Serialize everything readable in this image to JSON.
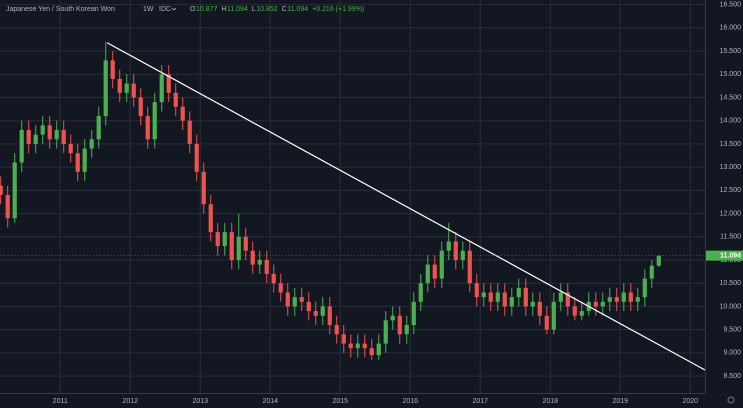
{
  "chart_data": {
    "type": "candlestick",
    "symbol": "Japanese Yen / South Korean Won",
    "interval": "1W",
    "source": "IDC",
    "ohlc_legend": [
      {
        "label": "O",
        "value": 10.877
      },
      {
        "label": "H",
        "value": 11.094
      },
      {
        "label": "L",
        "value": 10.852
      },
      {
        "label": "C",
        "value": 11.094
      }
    ],
    "change": "+0.216 (+1.99%)",
    "last_price": 11.094,
    "up_color": "#4caf50",
    "down_color": "#ef5350",
    "x": [
      2010.15,
      2010.25,
      2010.35,
      2010.45,
      2010.55,
      2010.65,
      2010.75,
      2010.85,
      2010.95,
      2011.05,
      2011.15,
      2011.25,
      2011.35,
      2011.45,
      2011.55,
      2011.65,
      2011.75,
      2011.85,
      2011.95,
      2012.05,
      2012.15,
      2012.25,
      2012.35,
      2012.45,
      2012.55,
      2012.65,
      2012.75,
      2012.85,
      2012.95,
      2013.05,
      2013.15,
      2013.25,
      2013.35,
      2013.45,
      2013.55,
      2013.65,
      2013.75,
      2013.85,
      2013.95,
      2014.05,
      2014.15,
      2014.25,
      2014.35,
      2014.45,
      2014.55,
      2014.65,
      2014.75,
      2014.85,
      2014.95,
      2015.05,
      2015.15,
      2015.25,
      2015.35,
      2015.45,
      2015.55,
      2015.65,
      2015.75,
      2015.85,
      2015.95,
      2016.05,
      2016.15,
      2016.25,
      2016.35,
      2016.45,
      2016.55,
      2016.65,
      2016.75,
      2016.85,
      2016.95,
      2017.05,
      2017.15,
      2017.25,
      2017.35,
      2017.45,
      2017.55,
      2017.65,
      2017.75,
      2017.85,
      2017.95,
      2018.05,
      2018.15,
      2018.25,
      2018.35,
      2018.45,
      2018.55,
      2018.65,
      2018.75,
      2018.85,
      2018.95,
      2019.05,
      2019.15,
      2019.25,
      2019.35,
      2019.45,
      2019.55
    ],
    "candles": [
      [
        12.6,
        12.8,
        12.2,
        12.4
      ],
      [
        12.4,
        12.6,
        11.7,
        11.9
      ],
      [
        11.9,
        13.3,
        11.8,
        13.1
      ],
      [
        13.1,
        14.0,
        12.9,
        13.8
      ],
      [
        13.8,
        14.0,
        13.3,
        13.5
      ],
      [
        13.5,
        13.9,
        13.3,
        13.7
      ],
      [
        13.7,
        14.1,
        13.5,
        13.9
      ],
      [
        13.9,
        14.1,
        13.4,
        13.6
      ],
      [
        13.6,
        14.0,
        13.4,
        13.8
      ],
      [
        13.8,
        14.0,
        13.3,
        13.5
      ],
      [
        13.5,
        13.7,
        13.1,
        13.3
      ],
      [
        13.3,
        13.5,
        12.7,
        12.9
      ],
      [
        12.9,
        13.6,
        12.7,
        13.4
      ],
      [
        13.4,
        13.8,
        13.2,
        13.6
      ],
      [
        13.6,
        14.3,
        13.4,
        14.1
      ],
      [
        14.1,
        15.7,
        13.9,
        15.3
      ],
      [
        15.3,
        15.5,
        14.7,
        14.9
      ],
      [
        14.9,
        15.1,
        14.4,
        14.6
      ],
      [
        14.6,
        15.0,
        14.4,
        14.8
      ],
      [
        14.8,
        15.0,
        14.3,
        14.5
      ],
      [
        14.5,
        14.7,
        13.9,
        14.1
      ],
      [
        14.1,
        14.3,
        13.4,
        13.6
      ],
      [
        13.6,
        14.6,
        13.4,
        14.4
      ],
      [
        14.4,
        15.2,
        14.2,
        15.0
      ],
      [
        15.0,
        15.2,
        14.4,
        14.6
      ],
      [
        14.6,
        14.8,
        14.1,
        14.3
      ],
      [
        14.3,
        14.5,
        13.8,
        14.0
      ],
      [
        14.0,
        14.2,
        13.3,
        13.5
      ],
      [
        13.5,
        13.7,
        12.7,
        12.9
      ],
      [
        12.9,
        13.1,
        12.0,
        12.2
      ],
      [
        12.2,
        12.4,
        11.4,
        11.6
      ],
      [
        11.6,
        11.8,
        11.1,
        11.3
      ],
      [
        11.3,
        11.8,
        11.1,
        11.6
      ],
      [
        11.6,
        11.8,
        10.8,
        11.0
      ],
      [
        11.0,
        12.0,
        10.8,
        11.5
      ],
      [
        11.5,
        11.7,
        11.0,
        11.2
      ],
      [
        11.2,
        11.4,
        10.7,
        10.9
      ],
      [
        10.9,
        11.2,
        10.7,
        11.0
      ],
      [
        11.0,
        11.2,
        10.5,
        10.7
      ],
      [
        10.7,
        10.9,
        10.3,
        10.5
      ],
      [
        10.5,
        10.7,
        10.1,
        10.3
      ],
      [
        10.3,
        10.5,
        9.8,
        10.0
      ],
      [
        10.0,
        10.4,
        9.8,
        10.2
      ],
      [
        10.2,
        10.4,
        9.9,
        10.1
      ],
      [
        10.1,
        10.3,
        9.7,
        9.9
      ],
      [
        9.9,
        10.1,
        9.6,
        9.8
      ],
      [
        9.8,
        10.2,
        9.6,
        10.0
      ],
      [
        10.0,
        10.2,
        9.4,
        9.6
      ],
      [
        9.6,
        9.8,
        9.2,
        9.4
      ],
      [
        9.4,
        9.6,
        9.0,
        9.2
      ],
      [
        9.2,
        9.4,
        8.9,
        9.1
      ],
      [
        9.1,
        9.4,
        8.9,
        9.2
      ],
      [
        9.2,
        9.4,
        8.9,
        9.1
      ],
      [
        9.1,
        9.3,
        8.85,
        8.95
      ],
      [
        8.95,
        9.4,
        8.85,
        9.2
      ],
      [
        9.2,
        9.9,
        9.0,
        9.7
      ],
      [
        9.7,
        10.0,
        9.5,
        9.8
      ],
      [
        9.8,
        10.0,
        9.2,
        9.4
      ],
      [
        9.4,
        9.8,
        9.2,
        9.6
      ],
      [
        9.6,
        10.3,
        9.4,
        10.1
      ],
      [
        10.1,
        10.7,
        9.9,
        10.5
      ],
      [
        10.5,
        11.1,
        10.3,
        10.9
      ],
      [
        10.9,
        11.1,
        10.4,
        10.6
      ],
      [
        10.6,
        11.4,
        10.4,
        11.2
      ],
      [
        11.2,
        11.8,
        11.0,
        11.4
      ],
      [
        11.4,
        11.6,
        10.8,
        11.0
      ],
      [
        11.0,
        11.4,
        10.8,
        11.2
      ],
      [
        11.2,
        11.4,
        10.3,
        10.5
      ],
      [
        10.5,
        10.7,
        10.0,
        10.2
      ],
      [
        10.2,
        10.5,
        10.0,
        10.3
      ],
      [
        10.3,
        10.5,
        9.9,
        10.1
      ],
      [
        10.1,
        10.5,
        9.9,
        10.3
      ],
      [
        10.3,
        10.5,
        9.8,
        10.0
      ],
      [
        10.0,
        10.4,
        9.8,
        10.2
      ],
      [
        10.2,
        10.6,
        10.0,
        10.4
      ],
      [
        10.4,
        10.6,
        9.8,
        10.0
      ],
      [
        10.0,
        10.3,
        9.8,
        10.1
      ],
      [
        10.1,
        10.3,
        9.6,
        9.8
      ],
      [
        9.8,
        10.0,
        9.4,
        9.5
      ],
      [
        9.5,
        10.3,
        9.4,
        10.1
      ],
      [
        10.1,
        10.5,
        9.9,
        10.3
      ],
      [
        10.3,
        10.5,
        9.8,
        10.0
      ],
      [
        10.0,
        10.2,
        9.7,
        9.8
      ],
      [
        9.8,
        10.1,
        9.7,
        9.9
      ],
      [
        9.9,
        10.3,
        9.8,
        10.1
      ],
      [
        10.1,
        10.3,
        9.8,
        10.0
      ],
      [
        10.0,
        10.3,
        9.8,
        10.1
      ],
      [
        10.1,
        10.4,
        9.9,
        10.2
      ],
      [
        10.2,
        10.4,
        9.9,
        10.1
      ],
      [
        10.1,
        10.5,
        9.9,
        10.3
      ],
      [
        10.3,
        10.5,
        9.9,
        10.1
      ],
      [
        10.1,
        10.4,
        9.9,
        10.2
      ],
      [
        10.2,
        10.8,
        10.0,
        10.6
      ],
      [
        10.6,
        11.0,
        10.4,
        10.877
      ],
      [
        10.877,
        11.094,
        10.852,
        11.094
      ]
    ],
    "trendline": {
      "x": [
        2011.67,
        2020.21
      ],
      "y": [
        15.68,
        8.63
      ],
      "color": "#ffffff"
    },
    "xlim": [
      2010.14,
      2020.21
    ],
    "xticks": [
      2011,
      2012,
      2013,
      2014,
      2015,
      2016,
      2017,
      2018,
      2019,
      2020
    ],
    "ylim": [
      8.2,
      16.6
    ],
    "yticks": [
      {
        "value": 8.5,
        "label": "8.500"
      },
      {
        "value": 9,
        "label": "9.000"
      },
      {
        "value": 9.5,
        "label": "9.500"
      },
      {
        "value": 10,
        "label": "10.000"
      },
      {
        "value": 10.5,
        "label": "10.500"
      },
      {
        "value": 11,
        "label": "11.000"
      },
      {
        "value": 11.5,
        "label": "11.500"
      },
      {
        "value": 12,
        "label": "12.000"
      },
      {
        "value": 12.5,
        "label": "12.500"
      },
      {
        "value": 13,
        "label": "13.000"
      },
      {
        "value": 13.5,
        "label": "13.500"
      },
      {
        "value": 14,
        "label": "14.000"
      },
      {
        "value": 14.5,
        "label": "14.500"
      },
      {
        "value": 15,
        "label": "15.000"
      },
      {
        "value": 15.5,
        "label": "15.500"
      },
      {
        "value": 16,
        "label": "16.000"
      },
      {
        "value": 16.5,
        "label": "16.500"
      }
    ],
    "grid": true
  }
}
